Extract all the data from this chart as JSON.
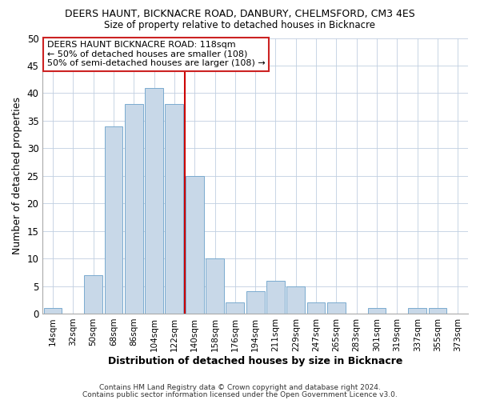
{
  "title": "DEERS HAUNT, BICKNACRE ROAD, DANBURY, CHELMSFORD, CM3 4ES",
  "subtitle": "Size of property relative to detached houses in Bicknacre",
  "xlabel": "Distribution of detached houses by size in Bicknacre",
  "ylabel": "Number of detached properties",
  "bar_color": "#c8d8e8",
  "bar_edge_color": "#7aaacf",
  "categories": [
    "14sqm",
    "32sqm",
    "50sqm",
    "68sqm",
    "86sqm",
    "104sqm",
    "122sqm",
    "140sqm",
    "158sqm",
    "176sqm",
    "194sqm",
    "211sqm",
    "229sqm",
    "247sqm",
    "265sqm",
    "283sqm",
    "301sqm",
    "319sqm",
    "337sqm",
    "355sqm",
    "373sqm"
  ],
  "values": [
    1,
    0,
    7,
    34,
    38,
    41,
    38,
    25,
    10,
    2,
    4,
    6,
    5,
    2,
    2,
    0,
    1,
    0,
    1,
    1,
    0
  ],
  "vline_x": 6.5,
  "vline_color": "#cc0000",
  "ylim": [
    0,
    50
  ],
  "yticks": [
    0,
    5,
    10,
    15,
    20,
    25,
    30,
    35,
    40,
    45,
    50
  ],
  "annotation_title": "DEERS HAUNT BICKNACRE ROAD: 118sqm",
  "annotation_line1": "← 50% of detached houses are smaller (108)",
  "annotation_line2": "50% of semi-detached houses are larger (108) →",
  "footer1": "Contains HM Land Registry data © Crown copyright and database right 2024.",
  "footer2": "Contains public sector information licensed under the Open Government Licence v3.0.",
  "bg_color": "#ffffff",
  "plot_bg_color": "#ffffff"
}
